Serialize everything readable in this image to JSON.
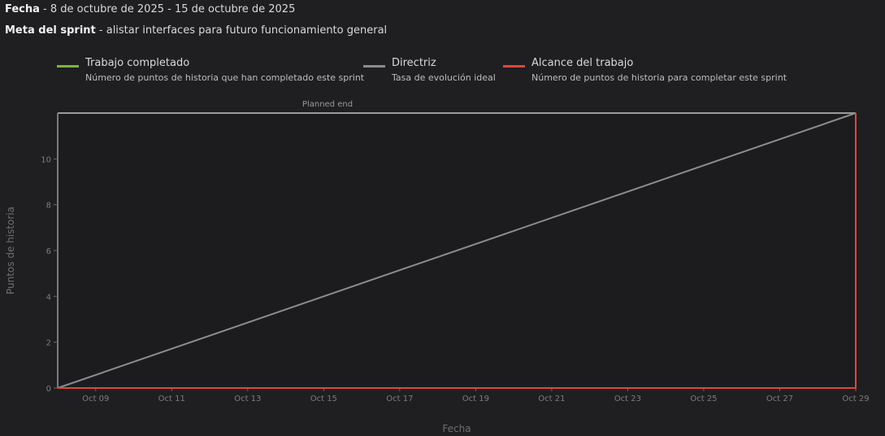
{
  "header": {
    "date_label": "Fecha",
    "date_value": " - 8 de octubre de 2025 - 15 de octubre de 2025",
    "goal_label": "Meta del sprint",
    "goal_value": " - alistar interfaces para futuro funcionamiento general"
  },
  "legend": [
    {
      "name": "Trabajo completado",
      "desc": "Número de puntos de historia que han completado este sprint",
      "color": "#7cb342"
    },
    {
      "name": "Directriz",
      "desc": "Tasa de evolución ideal",
      "color": "#8c8c8c"
    },
    {
      "name": "Alcance del trabajo",
      "desc": "Número de puntos de historia para completar este sprint",
      "color": "#e0463c"
    }
  ],
  "chart_data": {
    "type": "line",
    "annotation": "Planned end",
    "xlabel": "Fecha",
    "ylabel": "Puntos de historia",
    "x_tick_labels": [
      "Oct 09",
      "Oct 11",
      "Oct 13",
      "Oct 15",
      "Oct 17",
      "Oct 19",
      "Oct 21",
      "Oct 23",
      "Oct 25",
      "Oct 27",
      "Oct 29"
    ],
    "y_ticks": [
      0,
      2,
      4,
      6,
      8,
      10
    ],
    "ylim": [
      0,
      12
    ],
    "xlim": [
      "2025-10-08",
      "2025-10-29"
    ],
    "series": [
      {
        "name": "Directriz",
        "points": [
          [
            "2025-10-08",
            0
          ],
          [
            "2025-10-29",
            12
          ]
        ],
        "color": "#8c8c8c"
      },
      {
        "name": "Alcance del trabajo",
        "points": [
          [
            "2025-10-08",
            0
          ],
          [
            "2025-10-29",
            0
          ],
          [
            "2025-10-29",
            12
          ]
        ],
        "color": "#e0463c"
      }
    ],
    "grid": false,
    "legend_position": "top"
  }
}
